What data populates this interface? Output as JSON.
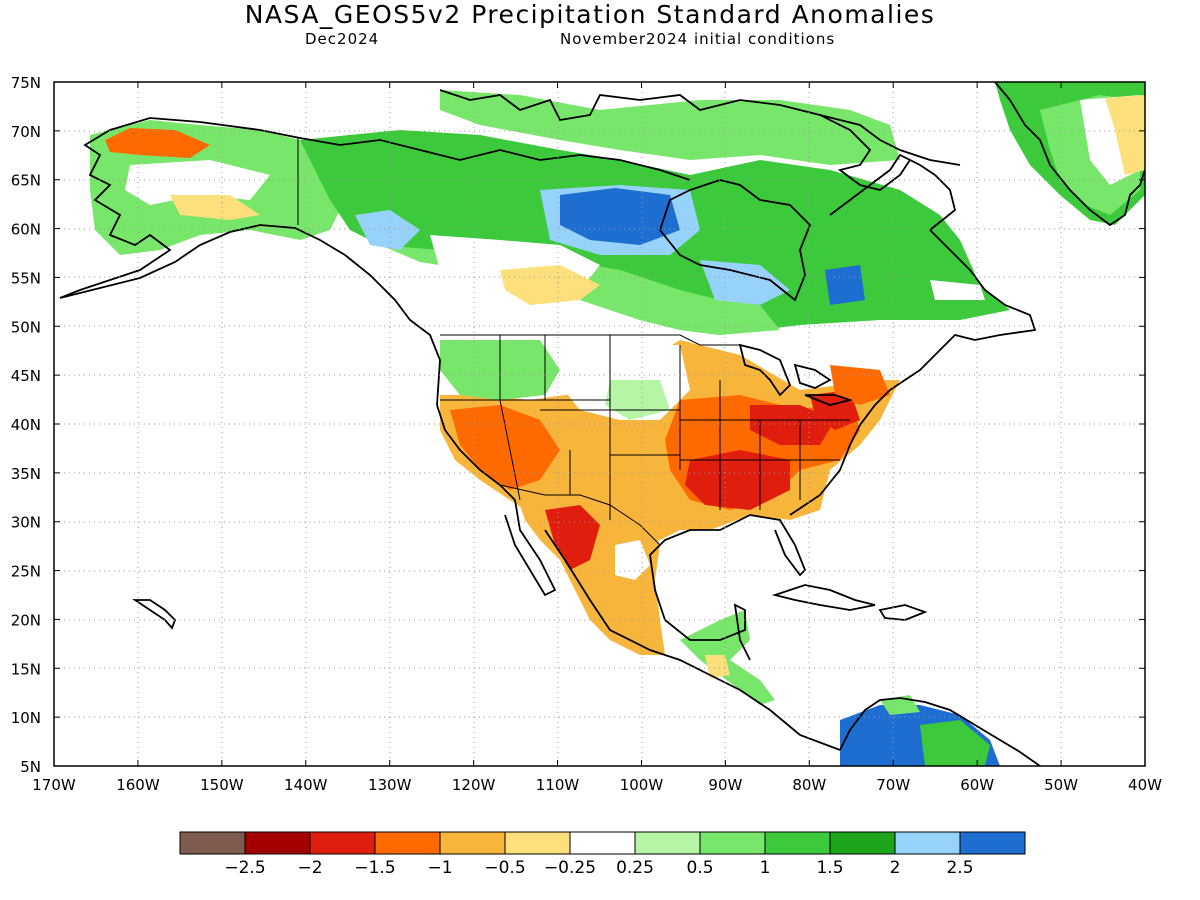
{
  "map": {
    "title": "NASA_GEOS5v2 Precipitation Standard Anomalies",
    "subtitle_left": "Dec2024",
    "subtitle_right": "November2024 initial conditions",
    "lat_labels": [
      "75N",
      "70N",
      "65N",
      "60N",
      "55N",
      "50N",
      "45N",
      "40N",
      "35N",
      "30N",
      "25N",
      "20N",
      "15N",
      "10N",
      "5N"
    ],
    "lon_labels": [
      "170W",
      "160W",
      "150W",
      "140W",
      "130W",
      "120W",
      "110W",
      "100W",
      "90W",
      "80W",
      "70W",
      "60W",
      "50W",
      "40W"
    ],
    "extent": {
      "lon_min": -170,
      "lon_max": -40,
      "lat_min": 5,
      "lat_max": 75
    }
  },
  "legend": {
    "colors": [
      "#7f5a4e",
      "#a50000",
      "#e01e0e",
      "#ff6a00",
      "#f8b53c",
      "#fde07c",
      "#ffffff",
      "#b6f5a6",
      "#78e66a",
      "#3cca3c",
      "#1ea51e",
      "#96d2fa",
      "#1e6ed2"
    ],
    "labels": [
      "−2.5",
      "−2",
      "−1.5",
      "−1",
      "−0.5",
      "−0.25",
      "0.25",
      "0.5",
      "1",
      "1.5",
      "2",
      "2.5"
    ]
  }
}
